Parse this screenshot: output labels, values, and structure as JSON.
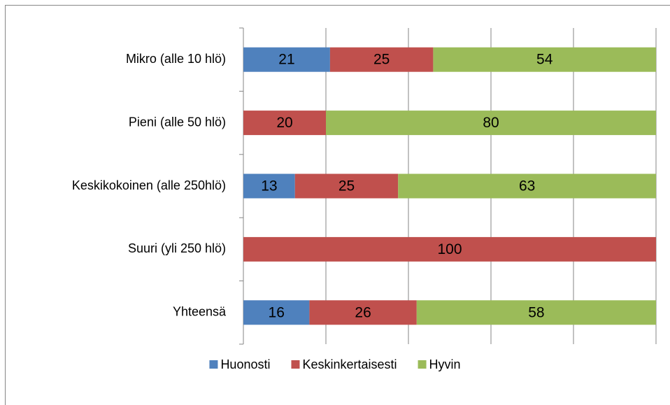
{
  "chart_data": {
    "type": "stacked_bar_horizontal",
    "categories": [
      "Mikro (alle 10 hlö)",
      "Pieni (alle 50 hlö)",
      "Keskikokoinen (alle 250hlö)",
      "Suuri (yli 250 hlö)",
      "Yhteensä"
    ],
    "series": [
      {
        "name": "Huonosti",
        "color": "#4f81bd",
        "values": [
          21,
          null,
          12.5,
          null,
          16
        ],
        "value_labels": [
          "21",
          null,
          "13",
          null,
          "16"
        ]
      },
      {
        "name": "Keskinkertaisesti",
        "color": "#c0504d",
        "values": [
          25,
          20,
          25,
          100,
          26
        ],
        "value_labels": [
          "25",
          "20",
          "25",
          "100",
          "26"
        ]
      },
      {
        "name": "Hyvin",
        "color": "#9bbb59",
        "values": [
          54,
          80,
          62.5,
          null,
          58
        ],
        "value_labels": [
          "54",
          "80",
          "63",
          null,
          "58"
        ]
      }
    ],
    "xlim": [
      0,
      100
    ],
    "xticks": [
      0,
      20,
      40,
      60,
      80,
      100
    ],
    "grid": true,
    "legend": "bottom"
  }
}
